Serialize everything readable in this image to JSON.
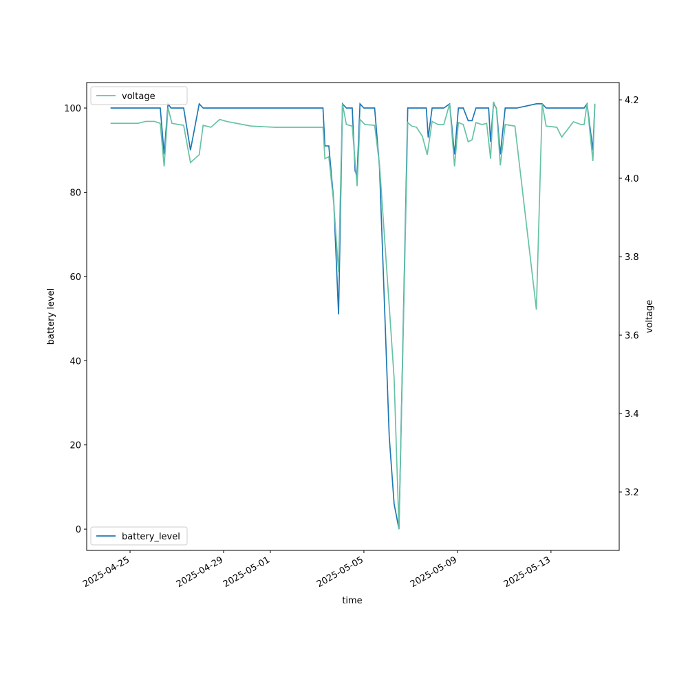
{
  "chart_data": {
    "type": "line",
    "xlabel": "time",
    "ylabel": "battery level",
    "y2label": "voltage",
    "xlim": [
      "2025-04-23 03:30",
      "2025-05-15 22:00"
    ],
    "xticks": [
      "2025-04-25",
      "2025-04-29",
      "2025-05-01",
      "2025-05-05",
      "2025-05-09",
      "2025-05-13"
    ],
    "ylim": [
      -5.05,
      106.05
    ],
    "yticks": [
      0,
      20,
      40,
      60,
      80,
      100
    ],
    "y2lim": [
      3.051,
      4.244
    ],
    "y2ticks": [
      3.2,
      3.4,
      3.6,
      3.8,
      {
        "value": 4,
        "label": "4.0"
      },
      4.2
    ],
    "series": [
      {
        "name": "battery_level",
        "color": "#1f77b4",
        "axis": "y",
        "legend_loc": "lower left",
        "x": [
          "2025-04-24 04:00",
          "2025-04-26 07:00",
          "2025-04-26 11:00",
          "2025-04-26 15:00",
          "2025-04-26 18:00",
          "2025-04-27 07:00",
          "2025-04-27 14:00",
          "2025-04-27 23:00",
          "2025-04-28 03:00",
          "2025-05-03 06:00",
          "2025-05-03 08:00",
          "2025-05-03 12:00",
          "2025-05-03 17:00",
          "2025-05-03 22:00",
          "2025-05-04 02:00",
          "2025-05-04 06:00",
          "2025-05-04 12:00",
          "2025-05-04 15:00",
          "2025-05-04 17:00",
          "2025-05-04 20:00",
          "2025-05-05 00:00",
          "2025-05-05 11:00",
          "2025-05-05 16:00",
          "2025-05-06 02:00",
          "2025-05-06 07:00",
          "2025-05-06 12:00",
          "2025-05-06 21:00",
          "2025-05-07 16:00",
          "2025-05-07 18:00",
          "2025-05-07 22:00",
          "2025-05-08 10:00",
          "2025-05-08 16:00",
          "2025-05-08 21:00",
          "2025-05-09 01:00",
          "2025-05-09 06:00",
          "2025-05-09 11:00",
          "2025-05-09 15:00",
          "2025-05-09 19:00",
          "2025-05-10 08:00",
          "2025-05-10 10:00",
          "2025-05-10 13:00",
          "2025-05-10 16:00",
          "2025-05-10 20:00",
          "2025-05-11 01:00",
          "2025-05-11 13:00",
          "2025-05-12 09:00",
          "2025-05-12 15:00",
          "2025-05-12 19:00",
          "2025-05-14 10:00",
          "2025-05-14 13:00",
          "2025-05-14 19:00",
          "2025-05-14 21:00"
        ],
        "values": [
          100,
          100,
          89,
          101,
          100,
          100,
          90,
          101,
          100,
          100,
          91,
          91,
          78,
          51,
          101,
          100,
          100,
          85,
          84,
          101,
          100,
          100,
          86,
          22,
          6,
          0,
          100,
          100,
          93,
          100,
          100,
          101,
          89,
          100,
          100,
          97,
          97,
          100,
          100,
          92,
          101,
          100,
          89,
          100,
          100,
          101,
          101,
          100,
          100,
          101,
          90,
          101
        ]
      },
      {
        "name": "voltage",
        "color": "#66c2a5",
        "axis": "y2",
        "legend_loc": "upper left",
        "x": [
          "2025-04-24 04:00",
          "2025-04-25 08:00",
          "2025-04-25 16:00",
          "2025-04-26 01:00",
          "2025-04-26 07:00",
          "2025-04-26 11:00",
          "2025-04-26 15:00",
          "2025-04-26 19:00",
          "2025-04-27 07:00",
          "2025-04-27 14:00",
          "2025-04-27 23:00",
          "2025-04-28 03:00",
          "2025-04-28 11:00",
          "2025-04-28 20:00",
          "2025-04-29 03:00",
          "2025-04-30 04:00",
          "2025-05-01 05:00",
          "2025-05-02 09:00",
          "2025-05-03 06:00",
          "2025-05-03 08:00",
          "2025-05-03 12:00",
          "2025-05-03 17:00",
          "2025-05-03 22:00",
          "2025-05-04 02:00",
          "2025-05-04 06:00",
          "2025-05-04 12:00",
          "2025-05-04 17:00",
          "2025-05-04 20:00",
          "2025-05-05 01:00",
          "2025-05-05 11:00",
          "2025-05-05 16:00",
          "2025-05-06 02:00",
          "2025-05-06 07:00",
          "2025-05-06 12:00",
          "2025-05-06 21:00",
          "2025-05-07 01:00",
          "2025-05-07 06:00",
          "2025-05-07 12:00",
          "2025-05-07 17:00",
          "2025-05-07 22:00",
          "2025-05-08 04:00",
          "2025-05-08 10:00",
          "2025-05-08 16:00",
          "2025-05-08 21:00",
          "2025-05-09 01:00",
          "2025-05-09 06:00",
          "2025-05-09 11:00",
          "2025-05-09 15:00",
          "2025-05-09 19:00",
          "2025-05-10 01:00",
          "2025-05-10 06:00",
          "2025-05-10 10:00",
          "2025-05-10 13:00",
          "2025-05-10 16:00",
          "2025-05-10 20:00",
          "2025-05-11 01:00",
          "2025-05-11 11:00",
          "2025-05-12 09:00",
          "2025-05-12 15:00",
          "2025-05-12 19:00",
          "2025-05-13 06:00",
          "2025-05-13 11:00",
          "2025-05-13 23:00",
          "2025-05-14 07:00",
          "2025-05-14 10:00",
          "2025-05-14 13:00",
          "2025-05-14 19:00",
          "2025-05-14 21:00"
        ],
        "values": [
          4.14,
          4.14,
          4.145,
          4.145,
          4.14,
          4.03,
          4.18,
          4.14,
          4.135,
          4.04,
          4.06,
          4.135,
          4.13,
          4.15,
          4.145,
          4.133,
          4.13,
          4.13,
          4.13,
          4.05,
          4.055,
          3.937,
          3.76,
          4.19,
          4.137,
          4.133,
          3.98,
          4.15,
          4.137,
          4.135,
          4.035,
          3.674,
          3.49,
          3.105,
          4.142,
          4.133,
          4.13,
          4.107,
          4.06,
          4.145,
          4.137,
          4.137,
          4.19,
          4.03,
          4.142,
          4.137,
          4.093,
          4.098,
          4.142,
          4.137,
          4.14,
          4.05,
          4.195,
          4.177,
          4.033,
          4.137,
          4.133,
          3.665,
          4.19,
          4.133,
          4.13,
          4.105,
          4.144,
          4.137,
          4.137,
          4.19,
          4.044,
          4.19
        ]
      }
    ]
  }
}
